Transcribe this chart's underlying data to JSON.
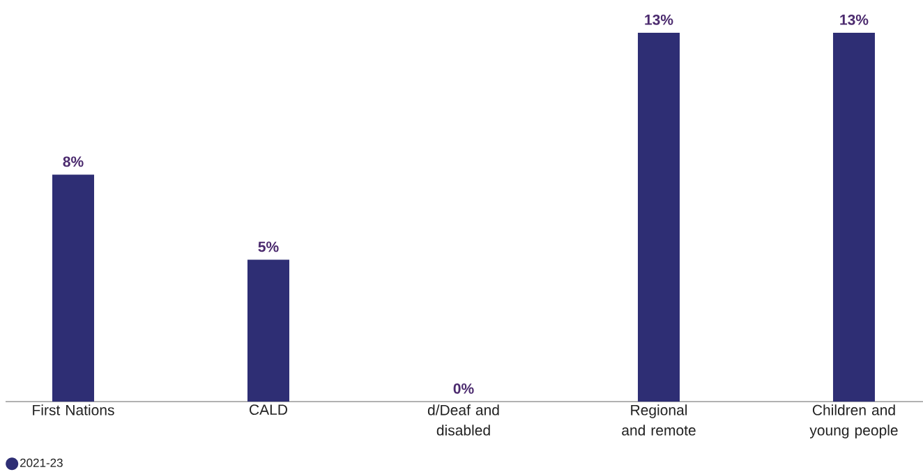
{
  "chart_data": {
    "type": "bar",
    "categories": [
      "First Nations",
      "CALD",
      "d/Deaf and disabled",
      "Regional and remote",
      "Children and young people"
    ],
    "series": [
      {
        "name": "2021-23",
        "color": "#2e2e74",
        "values": [
          8,
          5,
          0,
          13,
          13
        ],
        "value_labels": [
          "8%",
          "5%",
          "0%",
          "13%",
          "13%"
        ]
      }
    ],
    "legend": "bottom left"
  }
}
